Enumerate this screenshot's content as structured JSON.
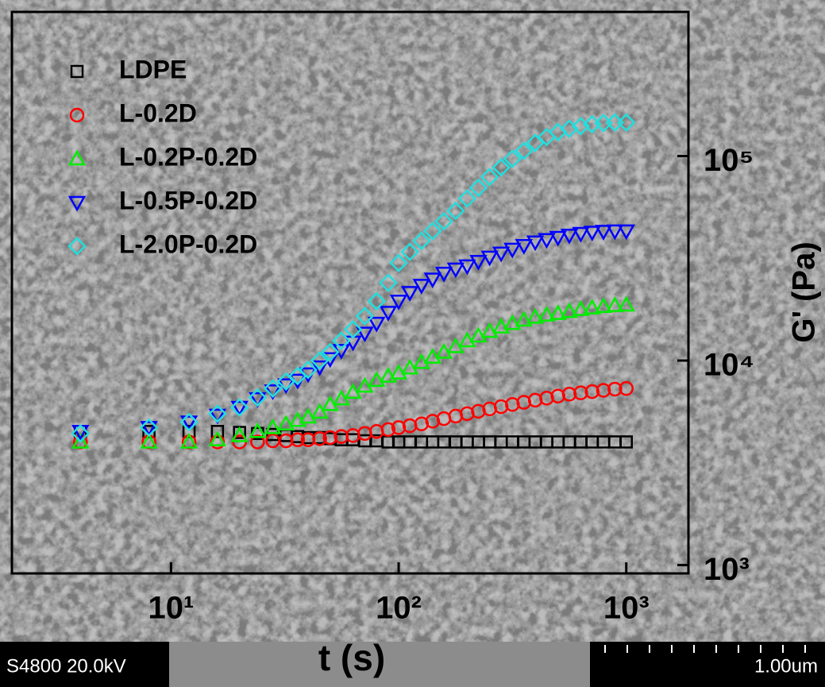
{
  "chart_data": {
    "type": "scatter",
    "xlabel": "t (s)",
    "ylabel": "G' (Pa)",
    "xscale": "log",
    "yscale": "log",
    "grid": false,
    "legend": "upper left",
    "xlim": [
      2,
      1875
    ],
    "ylim": [
      910,
      507000
    ],
    "xticks": [
      {
        "value": 10,
        "label": "10¹"
      },
      {
        "value": 100,
        "label": "10²"
      },
      {
        "value": 1000,
        "label": "10³"
      }
    ],
    "yticks": [
      {
        "value": 1000,
        "label": "10³"
      },
      {
        "value": 10000,
        "label": "10⁴"
      },
      {
        "value": 100000,
        "label": "10⁵"
      }
    ],
    "x": [
      4,
      8,
      12,
      16,
      20,
      24,
      28,
      32,
      36,
      40,
      45,
      50,
      56,
      63,
      71,
      80,
      90,
      100,
      112,
      126,
      141,
      158,
      178,
      200,
      224,
      251,
      282,
      316,
      355,
      398,
      447,
      501,
      562,
      631,
      708,
      794,
      891,
      1000
    ],
    "series": [
      {
        "name": "LDPE",
        "color": "#000000",
        "marker": "square",
        "values": [
          4500,
          4500,
          4500,
          4500,
          4450,
          4400,
          4350,
          4300,
          4250,
          4200,
          4200,
          4150,
          4100,
          4100,
          4050,
          4050,
          4000,
          4000,
          4000,
          4000,
          4000,
          4000,
          4000,
          4000,
          4000,
          4000,
          4000,
          4000,
          4000,
          4000,
          4000,
          4000,
          4000,
          4000,
          4000,
          4000,
          4000,
          4000
        ]
      },
      {
        "name": "L-0.2D",
        "color": "#ff0000",
        "marker": "circle",
        "values": [
          4000,
          4000,
          4000,
          4000,
          4000,
          4000,
          4050,
          4050,
          4100,
          4100,
          4150,
          4200,
          4250,
          4300,
          4400,
          4500,
          4600,
          4700,
          4800,
          4900,
          5050,
          5200,
          5350,
          5500,
          5650,
          5800,
          5950,
          6100,
          6250,
          6400,
          6550,
          6700,
          6850,
          6950,
          7050,
          7150,
          7250,
          7300
        ]
      },
      {
        "name": "L-0.2P-0.2D",
        "color": "#00ee00",
        "marker": "triangle-up",
        "values": [
          4000,
          4000,
          4000,
          4100,
          4300,
          4500,
          4700,
          4900,
          5100,
          5300,
          5600,
          6100,
          6500,
          7000,
          7500,
          8000,
          8400,
          8700,
          9200,
          9800,
          10400,
          11000,
          11700,
          12500,
          13200,
          13900,
          14600,
          15200,
          15800,
          16300,
          16700,
          17000,
          17400,
          17800,
          18100,
          18400,
          18600,
          18700
        ]
      },
      {
        "name": "L-0.5P-0.2D",
        "color": "#0000ff",
        "marker": "triangle-down",
        "values": [
          4500,
          4700,
          5000,
          5400,
          5900,
          6500,
          7100,
          7600,
          8000,
          8600,
          9300,
          10200,
          11200,
          12300,
          13600,
          15200,
          17200,
          19500,
          21500,
          23300,
          25000,
          26700,
          28000,
          29000,
          30500,
          32000,
          33500,
          35000,
          36500,
          38000,
          39000,
          40000,
          41000,
          41800,
          42400,
          42800,
          43000,
          43000
        ]
      },
      {
        "name": "L-2.0P-0.2D",
        "color": "#22dede",
        "marker": "diamond",
        "values": [
          4400,
          4700,
          5000,
          5500,
          5900,
          6600,
          7300,
          7900,
          8400,
          9000,
          10000,
          11000,
          12500,
          14200,
          16500,
          19500,
          24000,
          30000,
          34000,
          38500,
          43000,
          48000,
          54000,
          62000,
          70000,
          79000,
          88000,
          97000,
          106000,
          116000,
          124000,
          131000,
          136000,
          140000,
          143000,
          145000,
          146000,
          146000
        ]
      }
    ]
  },
  "sem_bar": {
    "left": "S4800 20.0kV",
    "right": "1.00um"
  }
}
